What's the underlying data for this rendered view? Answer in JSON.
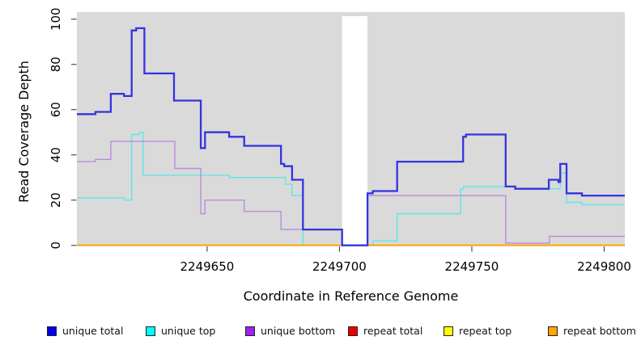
{
  "axis": {
    "xlabel": "Coordinate in Reference Genome",
    "ylabel": "Read Coverage Depth"
  },
  "legend": {
    "items": [
      {
        "label": "unique total",
        "color": "#0000EE"
      },
      {
        "label": "unique top",
        "color": "#00FFFF"
      },
      {
        "label": "unique bottom",
        "color": "#A020F0"
      },
      {
        "label": "repeat total",
        "color": "#EE0000"
      },
      {
        "label": "repeat top",
        "color": "#FFFF00"
      },
      {
        "label": "repeat bottom",
        "color": "#FFA500"
      }
    ]
  },
  "colors": {
    "panel_background": "#DADADA",
    "gap_band": "#FFFFFF",
    "tick": "#4d4d4d",
    "text": "#000000"
  },
  "chart_data": {
    "type": "line",
    "step": true,
    "title": "",
    "xlabel": "Coordinate in Reference Genome",
    "ylabel": "Read Coverage Depth",
    "xlim": [
      2249600.8,
      2249807.8
    ],
    "ylim": [
      0,
      100
    ],
    "x_ticks": [
      {
        "value": 2249650,
        "label": "2249650"
      },
      {
        "value": 2249700,
        "label": "2249700"
      },
      {
        "value": 2249750,
        "label": "2249750"
      },
      {
        "value": 2249800,
        "label": "2249800"
      }
    ],
    "y_ticks": [
      {
        "value": 0,
        "label": "0"
      },
      {
        "value": 20,
        "label": "20"
      },
      {
        "value": 40,
        "label": "40"
      },
      {
        "value": 60,
        "label": "60"
      },
      {
        "value": 80,
        "label": "80"
      },
      {
        "value": 100,
        "label": "100"
      }
    ],
    "grid": false,
    "legend_position": "bottom",
    "gap_region": [
      2249701.0,
      2249710.6
    ],
    "series": [
      {
        "name": "repeat total",
        "color": "#EE0000",
        "width": 1.6,
        "points": [
          [
            2249600.8,
            0
          ],
          [
            2249807.8,
            0
          ]
        ]
      },
      {
        "name": "repeat top",
        "color": "#FFFF00",
        "width": 1.6,
        "points": [
          [
            2249600.8,
            0
          ],
          [
            2249807.8,
            0
          ]
        ]
      },
      {
        "name": "unique top",
        "color": "#5FE6E6",
        "width": 1.4,
        "points": [
          [
            2249600.8,
            21
          ],
          [
            2249618.7,
            20
          ],
          [
            2249621.5,
            49
          ],
          [
            2249624.5,
            50
          ],
          [
            2249625.8,
            31
          ],
          [
            2249658.3,
            30
          ],
          [
            2249679.6,
            27
          ],
          [
            2249682.1,
            22
          ],
          [
            2249686.2,
            0
          ],
          [
            2249712.6,
            2
          ],
          [
            2249721.8,
            14
          ],
          [
            2249745.8,
            25
          ],
          [
            2249746.9,
            26
          ],
          [
            2249766.4,
            25
          ],
          [
            2249783.4,
            32
          ],
          [
            2249785.8,
            19
          ],
          [
            2249791.7,
            18
          ],
          [
            2249807.8,
            18
          ]
        ]
      },
      {
        "name": "unique bottom",
        "color": "#B88BE0",
        "width": 1.4,
        "points": [
          [
            2249600.8,
            37
          ],
          [
            2249607.8,
            38
          ],
          [
            2249613.6,
            46
          ],
          [
            2249637.8,
            34
          ],
          [
            2249647.6,
            14
          ],
          [
            2249649.2,
            20
          ],
          [
            2249664.0,
            15
          ],
          [
            2249677.9,
            7
          ],
          [
            2249701.0,
            0
          ],
          [
            2249710.6,
            22
          ],
          [
            2249762.8,
            1
          ],
          [
            2249779.3,
            4
          ],
          [
            2249807.8,
            4
          ]
        ]
      },
      {
        "name": "repeat bottom",
        "color": "#FFA500",
        "width": 1.9,
        "points": [
          [
            2249600.8,
            0
          ],
          [
            2249807.8,
            0
          ]
        ]
      },
      {
        "name": "unique total",
        "color": "#3333E0",
        "width": 2.3,
        "points": [
          [
            2249600.8,
            58
          ],
          [
            2249607.8,
            59
          ],
          [
            2249613.6,
            67
          ],
          [
            2249618.6,
            66
          ],
          [
            2249621.5,
            95
          ],
          [
            2249623.2,
            96
          ],
          [
            2249626.3,
            76
          ],
          [
            2249637.5,
            64
          ],
          [
            2249647.6,
            43
          ],
          [
            2249649.2,
            50
          ],
          [
            2249658.3,
            48
          ],
          [
            2249664.0,
            44
          ],
          [
            2249677.9,
            36
          ],
          [
            2249679.1,
            35
          ],
          [
            2249682.1,
            29
          ],
          [
            2249686.2,
            7
          ],
          [
            2249701.0,
            0
          ],
          [
            2249710.6,
            23
          ],
          [
            2249712.6,
            24
          ],
          [
            2249721.8,
            37
          ],
          [
            2249746.7,
            48
          ],
          [
            2249747.8,
            49
          ],
          [
            2249762.8,
            26
          ],
          [
            2249766.4,
            25
          ],
          [
            2249779.1,
            29
          ],
          [
            2249782.7,
            28
          ],
          [
            2249783.4,
            36
          ],
          [
            2249785.8,
            23
          ],
          [
            2249791.6,
            22
          ],
          [
            2249807.8,
            22
          ]
        ]
      }
    ]
  }
}
